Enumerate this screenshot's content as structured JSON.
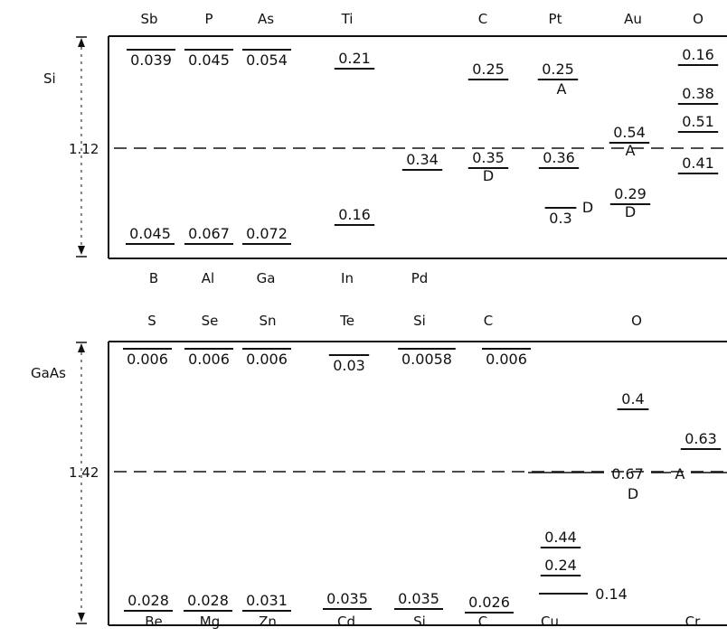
{
  "si": {
    "material": "Si",
    "gap": "1.12",
    "top_elements": [
      "Sb",
      "P",
      "As",
      "Ti",
      "C",
      "Pt",
      "Au",
      "O"
    ],
    "bottom_elements": [
      "B",
      "Al",
      "Ga",
      "In",
      "Pd"
    ],
    "levels": [
      {
        "text": "0.039",
        "line": "over"
      },
      {
        "text": "0.045",
        "line": "over"
      },
      {
        "text": "0.054",
        "line": "over"
      },
      {
        "text": "0.21",
        "line": "under"
      },
      {
        "text": "0.25",
        "line": "under"
      },
      {
        "text": "0.25",
        "line": "under"
      },
      {
        "text": "A",
        "line": "none"
      },
      {
        "text": "0.16",
        "line": "under"
      },
      {
        "text": "0.38",
        "line": "under"
      },
      {
        "text": "0.51",
        "line": "under"
      },
      {
        "text": "0.54",
        "line": "under"
      },
      {
        "text": "A",
        "line": "none"
      },
      {
        "text": "0.41",
        "line": "under"
      },
      {
        "text": "0.34",
        "line": "under"
      },
      {
        "text": "0.35",
        "line": "under"
      },
      {
        "text": "D",
        "line": "none"
      },
      {
        "text": "0.36",
        "line": "under"
      },
      {
        "text": "0.3",
        "line": "over"
      },
      {
        "text": "D",
        "line": "none"
      },
      {
        "text": "0.29",
        "line": "under"
      },
      {
        "text": "D",
        "line": "none"
      },
      {
        "text": "0.045",
        "line": "under"
      },
      {
        "text": "0.067",
        "line": "under"
      },
      {
        "text": "0.072",
        "line": "under"
      },
      {
        "text": "0.16",
        "line": "under"
      }
    ]
  },
  "gaas": {
    "material": "GaAs",
    "gap": "1.42",
    "top_elements": [
      "S",
      "Se",
      "Sn",
      "Te",
      "Si",
      "C",
      "O"
    ],
    "bottom_elements": [
      "Be",
      "Mg",
      "Zn",
      "Cd",
      "Si",
      "C",
      "Cu",
      "Cr"
    ],
    "levels": [
      {
        "text": "0.006",
        "line": "over"
      },
      {
        "text": "0.006",
        "line": "over"
      },
      {
        "text": "0.006",
        "line": "over"
      },
      {
        "text": "0.03",
        "line": "over"
      },
      {
        "text": "0.0058",
        "line": "over"
      },
      {
        "text": "0.006",
        "line": "over"
      },
      {
        "text": "0.4",
        "line": "under"
      },
      {
        "text": "0.63",
        "line": "under"
      },
      {
        "text": "0.67",
        "line": "none"
      },
      {
        "text": "A",
        "line": "none"
      },
      {
        "text": "D",
        "line": "none"
      },
      {
        "text": "0.44",
        "line": "under"
      },
      {
        "text": "0.24",
        "line": "under"
      },
      {
        "text": "0.14",
        "line": "none"
      },
      {
        "text": "0.028",
        "line": "under"
      },
      {
        "text": "0.028",
        "line": "under"
      },
      {
        "text": "0.031",
        "line": "under"
      },
      {
        "text": "0.035",
        "line": "under"
      },
      {
        "text": "0.035",
        "line": "under"
      },
      {
        "text": "0.026",
        "line": "under"
      }
    ]
  }
}
